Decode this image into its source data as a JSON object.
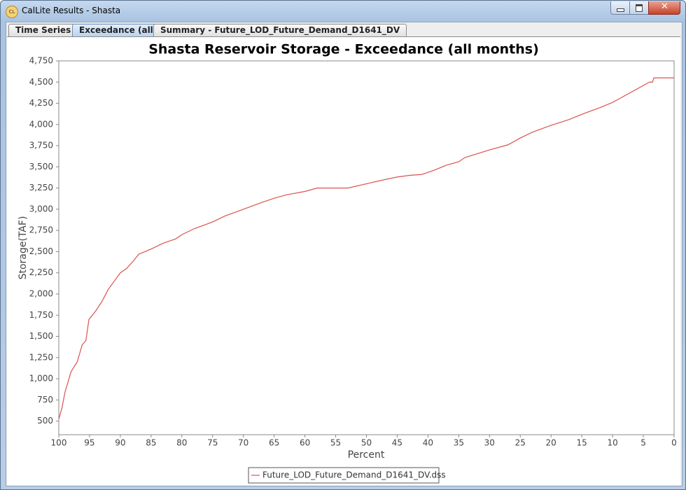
{
  "window": {
    "title": "CalLite Results - Shasta",
    "icon": "CL"
  },
  "tabs": [
    "Time Series",
    "Exceedance (all)",
    "Summary - Future_LOD_Future_Demand_D1641_DV"
  ],
  "chart_data": {
    "type": "line",
    "title": "Shasta Reservoir Storage - Exceedance (all months)",
    "x_label": "Percent",
    "y_label": "Storage(TAF)",
    "x": [
      100,
      99.5,
      99,
      98,
      97,
      96.2,
      95.6,
      95.1,
      94,
      93,
      92,
      91,
      90,
      89,
      88,
      87,
      86,
      85,
      83,
      81,
      80,
      78,
      75,
      73,
      70,
      67,
      65,
      63,
      60,
      58,
      53,
      50,
      47,
      45,
      43,
      41,
      39,
      37,
      35,
      34,
      30,
      27,
      25,
      23,
      20,
      17,
      15,
      12,
      10,
      8,
      5,
      4,
      3.5,
      3.3,
      0
    ],
    "series": [
      {
        "name": "Future_LOD_Future_Demand_D1641_DV.dss",
        "color": "#d9534f",
        "values": [
          525,
          650,
          840,
          1085,
          1200,
          1400,
          1450,
          1700,
          1800,
          1910,
          2050,
          2150,
          2250,
          2300,
          2380,
          2470,
          2500,
          2530,
          2600,
          2650,
          2700,
          2770,
          2850,
          2920,
          3000,
          3080,
          3130,
          3170,
          3210,
          3250,
          3250,
          3300,
          3350,
          3380,
          3400,
          3410,
          3460,
          3520,
          3560,
          3610,
          3700,
          3760,
          3840,
          3910,
          3990,
          4060,
          4120,
          4200,
          4260,
          4340,
          4460,
          4500,
          4500,
          4550,
          4550
        ]
      }
    ],
    "xlim": [
      100,
      0
    ],
    "xticks": [
      100,
      95,
      90,
      85,
      80,
      75,
      70,
      65,
      60,
      55,
      50,
      45,
      40,
      35,
      30,
      25,
      20,
      15,
      10,
      5,
      0
    ],
    "ylim": [
      340,
      4750
    ],
    "yticks": [
      500,
      {
        "value": 750,
        "label": "750"
      },
      {
        "value": 1000,
        "label": "1,000"
      },
      {
        "value": 1250,
        "label": "1,250"
      },
      {
        "value": 1500,
        "label": "1,500"
      },
      {
        "value": 1750,
        "label": "1,750"
      },
      {
        "value": 2000,
        "label": "2,000"
      },
      {
        "value": 2250,
        "label": "2,250"
      },
      {
        "value": 2500,
        "label": "2,500"
      },
      {
        "value": 2750,
        "label": "2,750"
      },
      {
        "value": 3000,
        "label": "3,000"
      },
      {
        "value": 3250,
        "label": "3,250"
      },
      {
        "value": 3500,
        "label": "3,500"
      },
      {
        "value": 3750,
        "label": "3,750"
      },
      {
        "value": 4000,
        "label": "4,000"
      },
      {
        "value": 4250,
        "label": "4,250"
      },
      {
        "value": 4500,
        "label": "4,500"
      },
      {
        "value": 4750,
        "label": "4,750"
      }
    ],
    "grid": false
  }
}
